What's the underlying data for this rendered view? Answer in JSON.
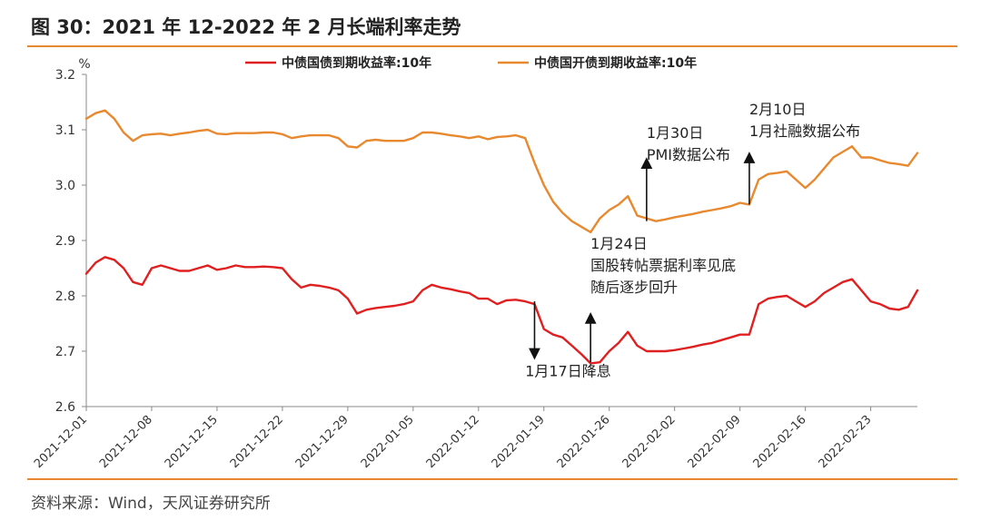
{
  "header": {
    "title": "图 30：2021 年 12-2022 年 2 月长端利率走势"
  },
  "footer": {
    "source": "资料来源：Wind，天风证券研究所"
  },
  "chart_data": {
    "type": "line",
    "yunit": "%",
    "ylim": [
      2.6,
      3.2
    ],
    "yticks": [
      "3.2",
      "3.1",
      "3.0",
      "2.9",
      "2.8",
      "2.7",
      "2.6"
    ],
    "xlim": [
      "2021-12-01",
      "2022-02-28"
    ],
    "xticks": [
      "2021-12-01",
      "2021-12-08",
      "2021-12-15",
      "2021-12-22",
      "2021-12-29",
      "2022-01-05",
      "2022-01-12",
      "2022-01-19",
      "2022-01-26",
      "2022-02-02",
      "2022-02-09",
      "2022-02-16",
      "2022-02-23"
    ],
    "grid": false,
    "legend_position": "top",
    "series": [
      {
        "name": "中债国债到期收益率:10年",
        "color": "#e02020",
        "points": [
          [
            "2021-12-01",
            2.84
          ],
          [
            "2021-12-02",
            2.86
          ],
          [
            "2021-12-03",
            2.87
          ],
          [
            "2021-12-04",
            2.865
          ],
          [
            "2021-12-05",
            2.85
          ],
          [
            "2021-12-06",
            2.825
          ],
          [
            "2021-12-07",
            2.82
          ],
          [
            "2021-12-08",
            2.85
          ],
          [
            "2021-12-09",
            2.855
          ],
          [
            "2021-12-10",
            2.85
          ],
          [
            "2021-12-11",
            2.845
          ],
          [
            "2021-12-12",
            2.845
          ],
          [
            "2021-12-13",
            2.85
          ],
          [
            "2021-12-14",
            2.855
          ],
          [
            "2021-12-15",
            2.847
          ],
          [
            "2021-12-16",
            2.85
          ],
          [
            "2021-12-17",
            2.855
          ],
          [
            "2021-12-18",
            2.852
          ],
          [
            "2021-12-19",
            2.852
          ],
          [
            "2021-12-20",
            2.853
          ],
          [
            "2021-12-21",
            2.852
          ],
          [
            "2021-12-22",
            2.85
          ],
          [
            "2021-12-23",
            2.83
          ],
          [
            "2021-12-24",
            2.815
          ],
          [
            "2021-12-25",
            2.82
          ],
          [
            "2021-12-26",
            2.818
          ],
          [
            "2021-12-27",
            2.815
          ],
          [
            "2021-12-28",
            2.81
          ],
          [
            "2021-12-29",
            2.795
          ],
          [
            "2021-12-30",
            2.768
          ],
          [
            "2021-12-31",
            2.775
          ],
          [
            "2022-01-01",
            2.778
          ],
          [
            "2022-01-02",
            2.78
          ],
          [
            "2022-01-03",
            2.782
          ],
          [
            "2022-01-04",
            2.785
          ],
          [
            "2022-01-05",
            2.79
          ],
          [
            "2022-01-06",
            2.81
          ],
          [
            "2022-01-07",
            2.82
          ],
          [
            "2022-01-08",
            2.815
          ],
          [
            "2022-01-09",
            2.812
          ],
          [
            "2022-01-10",
            2.808
          ],
          [
            "2022-01-11",
            2.805
          ],
          [
            "2022-01-12",
            2.795
          ],
          [
            "2022-01-13",
            2.795
          ],
          [
            "2022-01-14",
            2.785
          ],
          [
            "2022-01-15",
            2.792
          ],
          [
            "2022-01-16",
            2.793
          ],
          [
            "2022-01-17",
            2.79
          ],
          [
            "2022-01-18",
            2.785
          ],
          [
            "2022-01-19",
            2.74
          ],
          [
            "2022-01-20",
            2.73
          ],
          [
            "2022-01-21",
            2.725
          ],
          [
            "2022-01-22",
            2.71
          ],
          [
            "2022-01-23",
            2.695
          ],
          [
            "2022-01-24",
            2.678
          ],
          [
            "2022-01-25",
            2.68
          ],
          [
            "2022-01-26",
            2.7
          ],
          [
            "2022-01-27",
            2.715
          ],
          [
            "2022-01-28",
            2.735
          ],
          [
            "2022-01-29",
            2.71
          ],
          [
            "2022-01-30",
            2.7
          ],
          [
            "2022-01-31",
            2.7
          ],
          [
            "2022-02-01",
            2.7
          ],
          [
            "2022-02-02",
            2.702
          ],
          [
            "2022-02-03",
            2.705
          ],
          [
            "2022-02-04",
            2.708
          ],
          [
            "2022-02-05",
            2.712
          ],
          [
            "2022-02-06",
            2.715
          ],
          [
            "2022-02-07",
            2.72
          ],
          [
            "2022-02-08",
            2.725
          ],
          [
            "2022-02-09",
            2.73
          ],
          [
            "2022-02-10",
            2.73
          ],
          [
            "2022-02-11",
            2.785
          ],
          [
            "2022-02-12",
            2.795
          ],
          [
            "2022-02-13",
            2.798
          ],
          [
            "2022-02-14",
            2.8
          ],
          [
            "2022-02-15",
            2.79
          ],
          [
            "2022-02-16",
            2.78
          ],
          [
            "2022-02-17",
            2.79
          ],
          [
            "2022-02-18",
            2.805
          ],
          [
            "2022-02-19",
            2.815
          ],
          [
            "2022-02-20",
            2.825
          ],
          [
            "2022-02-21",
            2.83
          ],
          [
            "2022-02-22",
            2.81
          ],
          [
            "2022-02-23",
            2.79
          ],
          [
            "2022-02-24",
            2.785
          ],
          [
            "2022-02-25",
            2.777
          ],
          [
            "2022-02-26",
            2.775
          ],
          [
            "2022-02-27",
            2.78
          ],
          [
            "2022-02-28",
            2.81
          ]
        ]
      },
      {
        "name": "中债国开债到期收益率:10年",
        "color": "#e8892f",
        "points": [
          [
            "2021-12-01",
            3.12
          ],
          [
            "2021-12-02",
            3.13
          ],
          [
            "2021-12-03",
            3.135
          ],
          [
            "2021-12-04",
            3.12
          ],
          [
            "2021-12-05",
            3.095
          ],
          [
            "2021-12-06",
            3.08
          ],
          [
            "2021-12-07",
            3.09
          ],
          [
            "2021-12-08",
            3.092
          ],
          [
            "2021-12-09",
            3.093
          ],
          [
            "2021-12-10",
            3.09
          ],
          [
            "2021-12-11",
            3.093
          ],
          [
            "2021-12-12",
            3.095
          ],
          [
            "2021-12-13",
            3.098
          ],
          [
            "2021-12-14",
            3.1
          ],
          [
            "2021-12-15",
            3.093
          ],
          [
            "2021-12-16",
            3.092
          ],
          [
            "2021-12-17",
            3.094
          ],
          [
            "2021-12-18",
            3.094
          ],
          [
            "2021-12-19",
            3.094
          ],
          [
            "2021-12-20",
            3.095
          ],
          [
            "2021-12-21",
            3.095
          ],
          [
            "2021-12-22",
            3.092
          ],
          [
            "2021-12-23",
            3.085
          ],
          [
            "2021-12-24",
            3.088
          ],
          [
            "2021-12-25",
            3.09
          ],
          [
            "2021-12-26",
            3.09
          ],
          [
            "2021-12-27",
            3.09
          ],
          [
            "2021-12-28",
            3.085
          ],
          [
            "2021-12-29",
            3.07
          ],
          [
            "2021-12-30",
            3.068
          ],
          [
            "2021-12-31",
            3.08
          ],
          [
            "2022-01-01",
            3.082
          ],
          [
            "2022-01-02",
            3.08
          ],
          [
            "2022-01-03",
            3.08
          ],
          [
            "2022-01-04",
            3.08
          ],
          [
            "2022-01-05",
            3.085
          ],
          [
            "2022-01-06",
            3.095
          ],
          [
            "2022-01-07",
            3.095
          ],
          [
            "2022-01-08",
            3.093
          ],
          [
            "2022-01-09",
            3.09
          ],
          [
            "2022-01-10",
            3.088
          ],
          [
            "2022-01-11",
            3.085
          ],
          [
            "2022-01-12",
            3.088
          ],
          [
            "2022-01-13",
            3.083
          ],
          [
            "2022-01-14",
            3.087
          ],
          [
            "2022-01-15",
            3.088
          ],
          [
            "2022-01-16",
            3.09
          ],
          [
            "2022-01-17",
            3.085
          ],
          [
            "2022-01-18",
            3.04
          ],
          [
            "2022-01-19",
            3.0
          ],
          [
            "2022-01-20",
            2.97
          ],
          [
            "2022-01-21",
            2.95
          ],
          [
            "2022-01-22",
            2.935
          ],
          [
            "2022-01-23",
            2.925
          ],
          [
            "2022-01-24",
            2.915
          ],
          [
            "2022-01-25",
            2.94
          ],
          [
            "2022-01-26",
            2.955
          ],
          [
            "2022-01-27",
            2.965
          ],
          [
            "2022-01-28",
            2.98
          ],
          [
            "2022-01-29",
            2.945
          ],
          [
            "2022-01-30",
            2.94
          ],
          [
            "2022-01-31",
            2.935
          ],
          [
            "2022-02-01",
            2.938
          ],
          [
            "2022-02-02",
            2.942
          ],
          [
            "2022-02-03",
            2.945
          ],
          [
            "2022-02-04",
            2.948
          ],
          [
            "2022-02-05",
            2.952
          ],
          [
            "2022-02-06",
            2.955
          ],
          [
            "2022-02-07",
            2.958
          ],
          [
            "2022-02-08",
            2.962
          ],
          [
            "2022-02-09",
            2.968
          ],
          [
            "2022-02-10",
            2.965
          ],
          [
            "2022-02-11",
            3.01
          ],
          [
            "2022-02-12",
            3.02
          ],
          [
            "2022-02-13",
            3.022
          ],
          [
            "2022-02-14",
            3.025
          ],
          [
            "2022-02-15",
            3.01
          ],
          [
            "2022-02-16",
            2.995
          ],
          [
            "2022-02-17",
            3.01
          ],
          [
            "2022-02-18",
            3.03
          ],
          [
            "2022-02-19",
            3.05
          ],
          [
            "2022-02-20",
            3.06
          ],
          [
            "2022-02-21",
            3.07
          ],
          [
            "2022-02-22",
            3.05
          ],
          [
            "2022-02-23",
            3.05
          ],
          [
            "2022-02-24",
            3.045
          ],
          [
            "2022-02-25",
            3.04
          ],
          [
            "2022-02-26",
            3.038
          ],
          [
            "2022-02-27",
            3.035
          ],
          [
            "2022-02-28",
            3.058
          ]
        ]
      }
    ],
    "annotations": [
      {
        "lines": [
          "1月17日降息"
        ],
        "arrow_date": "2022-01-18",
        "arrow_from": 2.79,
        "arrow_to": 2.695,
        "text_anchor_date": "2022-01-17",
        "text_y": 2.655,
        "text_align": "center",
        "series": 0
      },
      {
        "lines": [
          "1月24日",
          "国股转帖票据利率见底",
          "随后逐步回升"
        ],
        "arrow_date": "2022-01-24",
        "arrow_from": 2.68,
        "arrow_to": 2.76,
        "text_anchor_date": "2022-01-24",
        "text_y": 2.885,
        "text_align": "start",
        "series": 0
      },
      {
        "lines": [
          "1月30日",
          "PMI数据公布"
        ],
        "arrow_date": "2022-01-30",
        "arrow_from": 2.935,
        "arrow_to": 3.04,
        "text_anchor_date": "2022-01-30",
        "text_y": 3.085,
        "text_align": "center",
        "series": 1
      },
      {
        "lines": [
          "2月10日",
          "1月社融数据公布"
        ],
        "arrow_date": "2022-02-10",
        "arrow_from": 2.965,
        "arrow_to": 3.05,
        "text_anchor_date": "2022-02-10",
        "text_y": 3.128,
        "text_align": "center",
        "series": 1
      }
    ]
  }
}
